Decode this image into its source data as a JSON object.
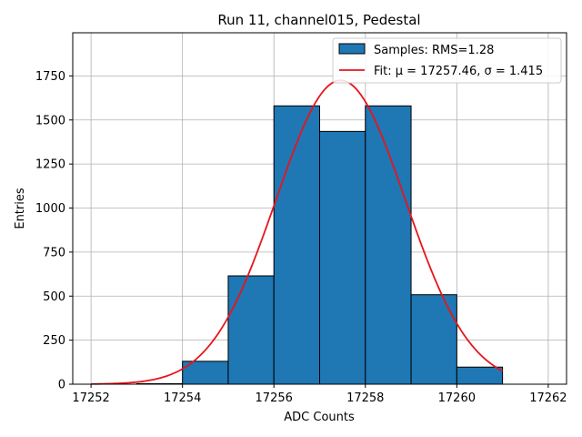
{
  "chart_data": {
    "type": "bar",
    "title": "Run 11, channel015, Pedestal",
    "xlabel": "ADC Counts",
    "ylabel": "Entries",
    "xlim": [
      17251.6,
      17262.4
    ],
    "ylim": [
      0,
      1995
    ],
    "xticks": [
      17252,
      17254,
      17256,
      17258,
      17260,
      17262
    ],
    "yticks": [
      0,
      250,
      500,
      750,
      1000,
      1250,
      1500,
      1750
    ],
    "grid": true,
    "legend_position": "top-right",
    "bins": [
      {
        "left": 17253,
        "right": 17254,
        "count": 3
      },
      {
        "left": 17254,
        "right": 17255,
        "count": 130
      },
      {
        "left": 17255,
        "right": 17256,
        "count": 615
      },
      {
        "left": 17256,
        "right": 17257,
        "count": 1580
      },
      {
        "left": 17257,
        "right": 17258,
        "count": 1435
      },
      {
        "left": 17258,
        "right": 17259,
        "count": 1580
      },
      {
        "left": 17259,
        "right": 17260,
        "count": 508
      },
      {
        "left": 17260,
        "right": 17261,
        "count": 97
      }
    ],
    "fit": {
      "mu": 17257.46,
      "sigma": 1.415,
      "amplitude": 1725,
      "x_range": [
        17252,
        17261
      ]
    },
    "legend": [
      {
        "label": "Samples: RMS=1.28",
        "kind": "patch",
        "color": "#1f77b4"
      },
      {
        "label": "Fit: μ = 17257.46, σ = 1.415",
        "kind": "line",
        "color": "#e8141c"
      }
    ],
    "colors": {
      "bar_fill": "#1f77b4",
      "bar_edge": "#000000",
      "fit_line": "#e8141c",
      "grid": "#b0b0b0"
    }
  }
}
